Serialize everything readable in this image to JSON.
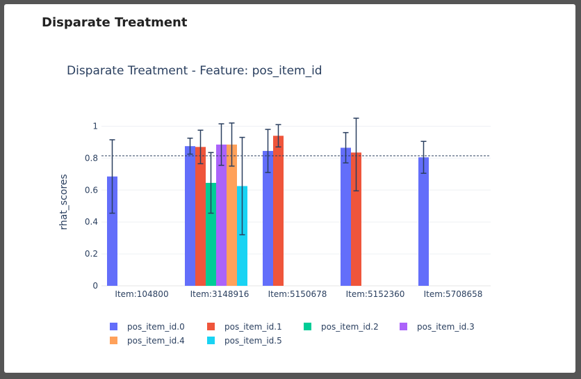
{
  "card": {
    "title": "Disparate Treatment"
  },
  "chart_data": {
    "type": "bar",
    "title": "Disparate Treatment - Feature: pos_item_id",
    "xlabel": "",
    "ylabel": "rhat_scores",
    "ylim": [
      0,
      1.05
    ],
    "yticks": [
      0,
      0.2,
      0.4,
      0.6,
      0.8,
      1
    ],
    "ytick_labels": [
      "0",
      "0.2",
      "0.4",
      "0.6",
      "0.8",
      "1"
    ],
    "categories": [
      "Item:104800",
      "Item:3148916",
      "Item:5150678",
      "Item:5152360",
      "Item:5708658"
    ],
    "reference_line": 0.815,
    "grid": true,
    "legend_placement": "bottom",
    "series": [
      {
        "name": "pos_item_id.0",
        "color": "#636efa",
        "values": [
          0.685,
          0.875,
          0.845,
          0.865,
          0.805
        ],
        "error": [
          0.23,
          0.05,
          0.135,
          0.095,
          0.1
        ]
      },
      {
        "name": "pos_item_id.1",
        "color": "#ef553b",
        "values": [
          null,
          0.87,
          0.94,
          0.835,
          null
        ],
        "error": [
          null,
          0.105,
          0.07,
          0.24,
          null
        ]
      },
      {
        "name": "pos_item_id.2",
        "color": "#00cc96",
        "values": [
          null,
          0.645,
          null,
          null,
          null
        ],
        "error": [
          null,
          0.19,
          null,
          null,
          null
        ]
      },
      {
        "name": "pos_item_id.3",
        "color": "#ab63fa",
        "values": [
          null,
          0.885,
          null,
          null,
          null
        ],
        "error": [
          null,
          0.13,
          null,
          null,
          null
        ]
      },
      {
        "name": "pos_item_id.4",
        "color": "#ffa15a",
        "values": [
          null,
          0.885,
          null,
          null,
          null
        ],
        "error": [
          null,
          0.135,
          null,
          null,
          null
        ]
      },
      {
        "name": "pos_item_id.5",
        "color": "#19d3f3",
        "values": [
          null,
          0.625,
          null,
          null,
          null
        ],
        "error": [
          null,
          0.305,
          null,
          null,
          null
        ]
      }
    ]
  }
}
